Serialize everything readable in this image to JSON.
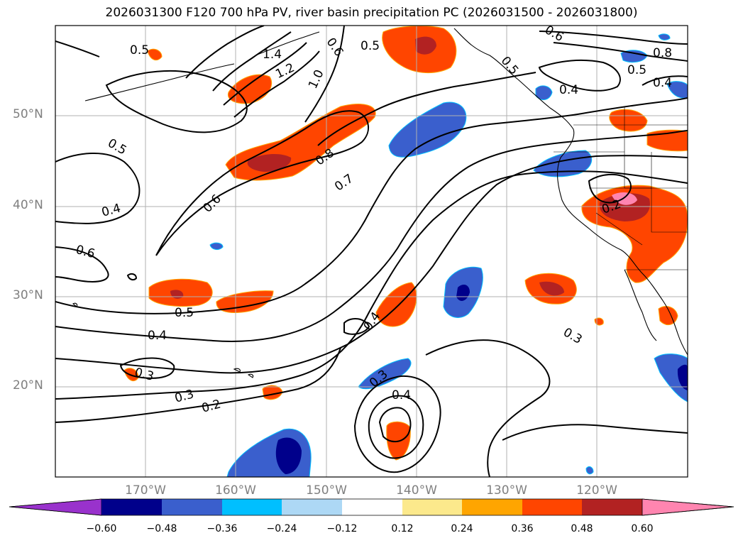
{
  "title": "2026031300 F120 700 hPa PV, river basin precipitation PC (2026031500 - 2026031800)",
  "map": {
    "projection": "PlateCarree",
    "lon_range_deg": [
      -180,
      -110
    ],
    "lat_range_deg": [
      10,
      60
    ],
    "gridlines": true,
    "coastlines": true,
    "state_borders": true
  },
  "latitude_labels": [
    "50°N",
    "40°N",
    "30°N",
    "20°N"
  ],
  "longitude_labels": [
    "170°W",
    "160°W",
    "150°W",
    "140°W",
    "130°W",
    "120°W"
  ],
  "contour_labels": [
    "0.5",
    "1.4",
    "1.2",
    "1.0",
    "0.6",
    "0.5",
    "0.6",
    "0.5",
    "0.8",
    "0.5",
    "0.4",
    "0.4",
    "0.5",
    "0.4",
    "0.8",
    "0.7",
    "0.6",
    "0.2",
    "0.6",
    "0.4",
    "0.5",
    "0.4",
    "0.3",
    "0.3",
    "0.2",
    "0.3",
    "0.4",
    "0.3"
  ],
  "colorbar": {
    "extend": "both",
    "ticks": [
      "−0.60",
      "−0.48",
      "−0.36",
      "−0.24",
      "−0.12",
      "0.12",
      "0.24",
      "0.36",
      "0.48",
      "0.60"
    ],
    "colors": [
      "#9932cc",
      "#00008b",
      "#3a5fcd",
      "#00bfff",
      "#add8f5",
      "#ffffff",
      "#fce98c",
      "#ffa500",
      "#ff4500",
      "#b22222",
      "#ff85b0"
    ]
  }
}
